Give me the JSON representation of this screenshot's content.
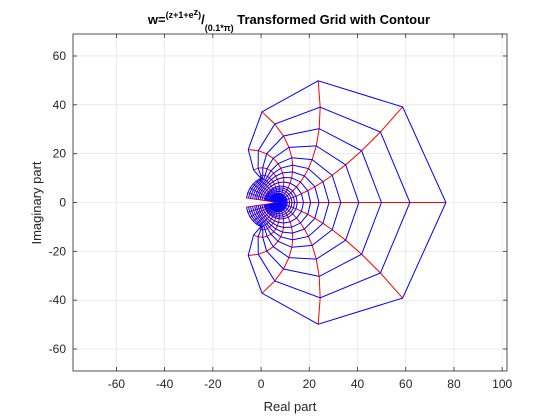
{
  "chart_data": {
    "type": "line",
    "title": {
      "prefix": "w=",
      "numerator_sup": "(z+1+e",
      "numerator_sup2": "z",
      "numerator_close": ")",
      "slash": "/",
      "denominator_sub": "(0.1*π)",
      "suffix": " Transformed Grid with Contour"
    },
    "xlabel": "Real part",
    "ylabel": "Imaginary part",
    "xlim": [
      -78,
      102
    ],
    "ylim": [
      -69,
      69
    ],
    "xticks": [
      -60,
      -40,
      -20,
      0,
      20,
      40,
      60,
      80,
      100
    ],
    "yticks": [
      -60,
      -40,
      -20,
      0,
      20,
      40,
      60
    ],
    "grid": true,
    "series": [
      {
        "role": "constant-radius contours",
        "color": "#0000ff"
      },
      {
        "role": "radial grid lines",
        "color": "#ff0000"
      }
    ],
    "grid_params": {
      "radii": [
        0.05,
        0.1,
        0.15,
        0.2,
        0.25,
        0.3,
        0.35,
        0.4,
        0.45,
        0.5,
        0.55,
        0.6,
        0.7,
        0.8,
        0.9,
        1.0,
        1.2,
        1.4,
        1.6,
        1.8,
        2.0,
        2.25,
        2.5,
        2.75,
        3.0
      ],
      "theta_range_deg": [
        -169,
        169
      ],
      "theta_step_deg": 13
    }
  }
}
